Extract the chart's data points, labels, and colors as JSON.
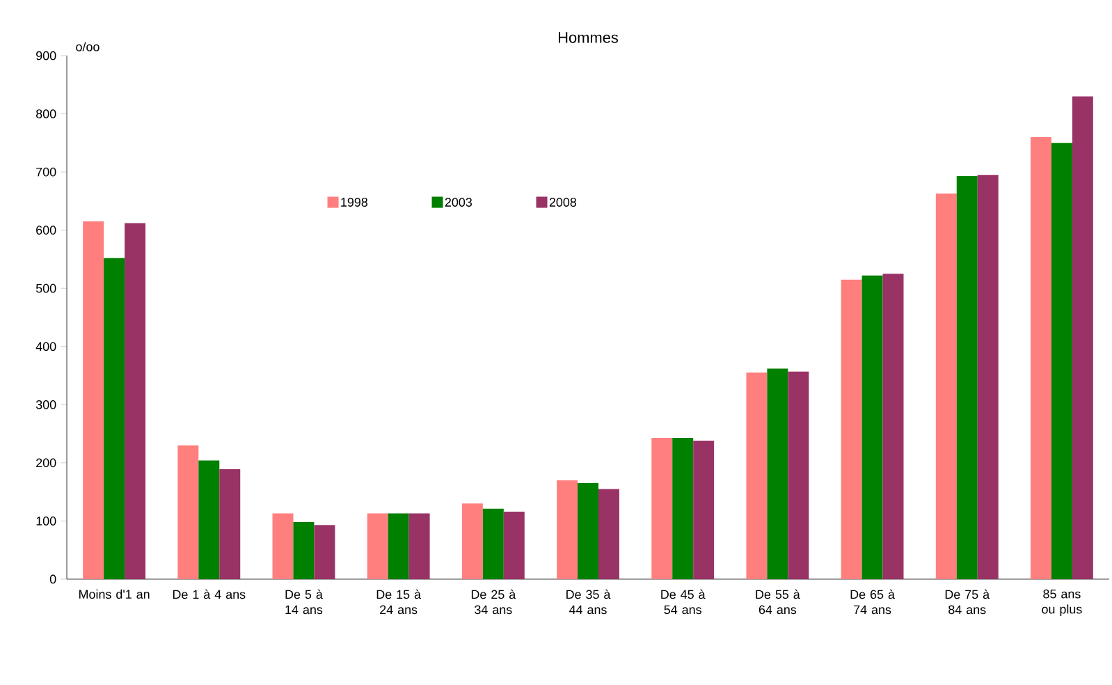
{
  "chart_data": {
    "type": "bar",
    "title": "Hommes",
    "ylabel": "o/oo",
    "categories": [
      "Moins d'1 an",
      "De 1 à 4 ans",
      "De 5 à 14 ans",
      "De 15 à 24 ans",
      "De 25 à 34 ans",
      "De 35 à 44 ans",
      "De 45 à 54 ans",
      "De 55 à 64 ans",
      "De 65 à 74 ans",
      "De 75 à 84 ans",
      "85 ans ou plus"
    ],
    "series": [
      {
        "name": "1998",
        "color": "#ff7f7f",
        "values": [
          615,
          230,
          113,
          113,
          130,
          170,
          243,
          355,
          515,
          663,
          760
        ]
      },
      {
        "name": "2003",
        "color": "#008000",
        "values": [
          552,
          204,
          98,
          113,
          121,
          165,
          243,
          362,
          522,
          693,
          750
        ]
      },
      {
        "name": "2008",
        "color": "#993366",
        "values": [
          612,
          189,
          93,
          113,
          116,
          155,
          238,
          357,
          525,
          695,
          830
        ]
      }
    ],
    "ylim": [
      0,
      900
    ],
    "yticks": [
      0,
      100,
      200,
      300,
      400,
      500,
      600,
      700,
      800,
      900
    ],
    "grid": false,
    "legend": "top left"
  }
}
